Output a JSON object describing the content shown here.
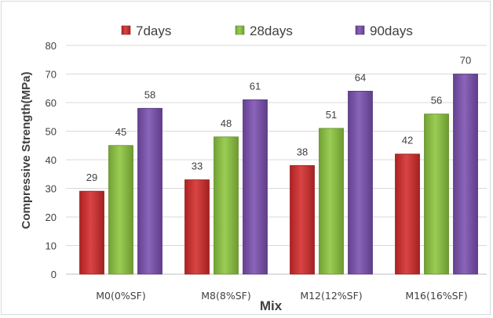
{
  "chart_data": {
    "type": "bar",
    "title": "",
    "xlabel": "Mix",
    "ylabel": "Compressive Strength(MPa)",
    "ylim": [
      0,
      80
    ],
    "yticks": [
      0,
      10,
      20,
      30,
      40,
      50,
      60,
      70,
      80
    ],
    "grid": true,
    "legend_position": "top",
    "categories": [
      "M0(0%SF)",
      "M8(8%SF)",
      "M12(12%SF)",
      "M16(16%SF)"
    ],
    "series": [
      {
        "name": "7days",
        "values": [
          29,
          33,
          38,
          42
        ],
        "color": "#d42a2a"
      },
      {
        "name": "28days",
        "values": [
          45,
          48,
          51,
          56
        ],
        "color": "#8cc63e"
      },
      {
        "name": "90days",
        "values": [
          58,
          61,
          64,
          70
        ],
        "color": "#7a4fb0"
      }
    ]
  }
}
